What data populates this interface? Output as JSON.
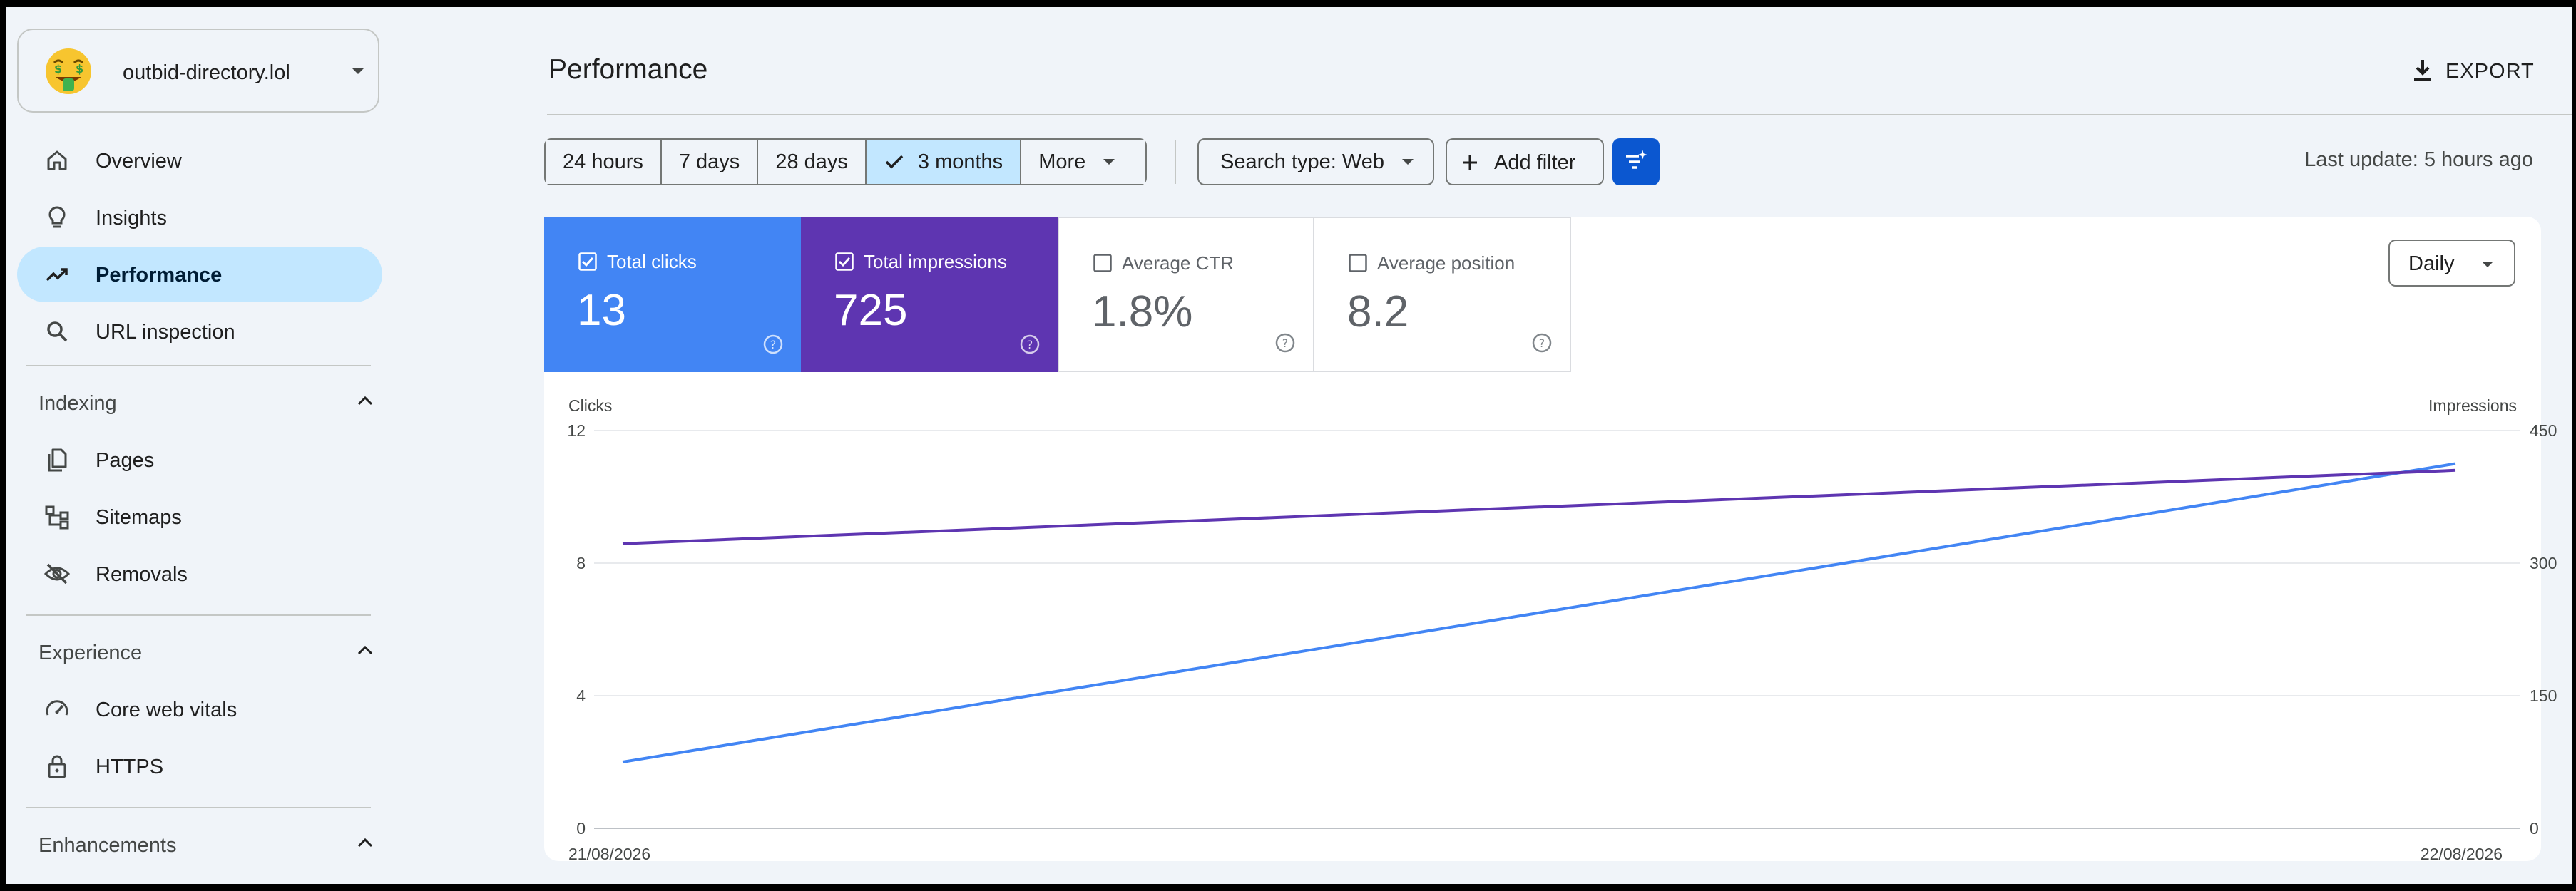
{
  "sidebar": {
    "property": {
      "name": "outbid-directory.lol",
      "icon": "money-mouth-face-emoji"
    },
    "top_items": [
      {
        "label": "Overview",
        "icon": "home-icon"
      },
      {
        "label": "Insights",
        "icon": "lightbulb-icon"
      },
      {
        "label": "Performance",
        "icon": "trending-up-icon",
        "active": true
      },
      {
        "label": "URL inspection",
        "icon": "search-icon"
      }
    ],
    "indexing": {
      "title": "Indexing",
      "items": [
        {
          "label": "Pages",
          "icon": "pages-icon"
        },
        {
          "label": "Sitemaps",
          "icon": "sitemap-icon"
        },
        {
          "label": "Removals",
          "icon": "eye-off-icon"
        }
      ]
    },
    "experience": {
      "title": "Experience",
      "items": [
        {
          "label": "Core web vitals",
          "icon": "speedometer-icon"
        },
        {
          "label": "HTTPS",
          "icon": "lock-icon"
        }
      ]
    },
    "enhancements": {
      "title": "Enhancements"
    }
  },
  "header": {
    "title": "Performance",
    "export_label": "EXPORT"
  },
  "toolbar": {
    "ranges": [
      "24 hours",
      "7 days",
      "28 days",
      "3 months",
      "More"
    ],
    "selected_range": "3 months",
    "search_type": "Search type: Web",
    "add_filter": "Add filter",
    "last_update": "Last update: 5 hours ago"
  },
  "metrics": [
    {
      "label": "Total clicks",
      "value": "13",
      "checked": true,
      "color": "#4285f4"
    },
    {
      "label": "Total impressions",
      "value": "725",
      "checked": true,
      "color": "#5e35b1"
    },
    {
      "label": "Average CTR",
      "value": "1.8%",
      "checked": false
    },
    {
      "label": "Average position",
      "value": "8.2",
      "checked": false
    }
  ],
  "granularity": "Daily",
  "chart_data": {
    "type": "line",
    "x": [
      "21/08/2026",
      "22/08/2026"
    ],
    "ylabel_left": "Clicks",
    "ylabel_right": "Impressions",
    "ylim_left": [
      0,
      12
    ],
    "ylim_right": [
      0,
      450
    ],
    "yticks_left": [
      0,
      4,
      8,
      12
    ],
    "yticks_right": [
      0,
      150,
      300,
      450
    ],
    "series": [
      {
        "name": "Total clicks",
        "axis": "left",
        "color": "#4285f4",
        "values": [
          2,
          11
        ]
      },
      {
        "name": "Total impressions",
        "axis": "right",
        "color": "#5e35b1",
        "values": [
          322,
          405
        ]
      }
    ],
    "grid": true
  }
}
